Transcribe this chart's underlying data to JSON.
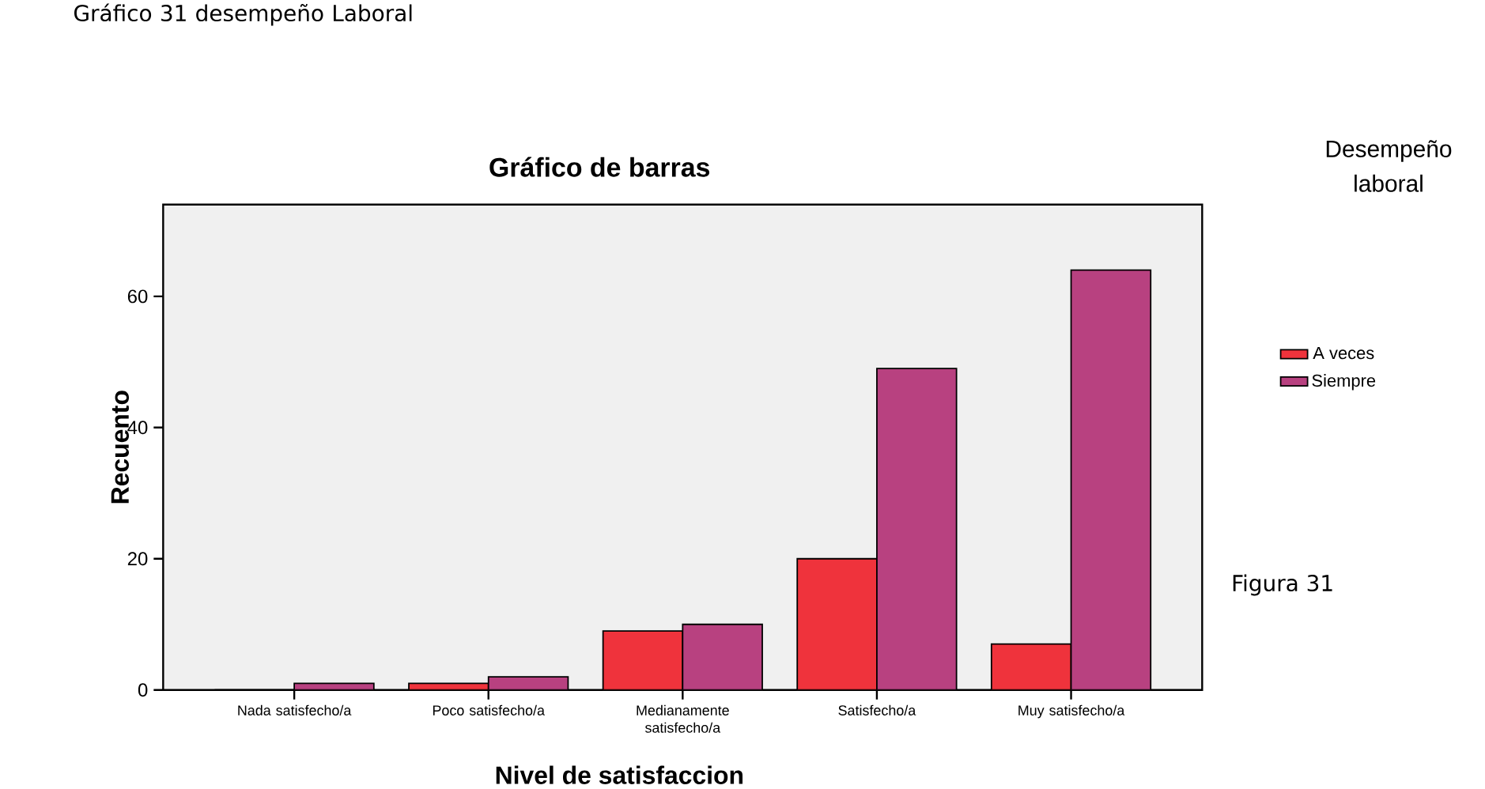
{
  "chart_data": {
    "type": "bar",
    "title": "Gráfico de barras",
    "xlabel": "Nivel de satisfaccion",
    "ylabel": "Recuento",
    "legend_title": "Desempeño laboral",
    "categories": [
      "Nada satisfecho/a",
      "Poco satisfecho/a",
      "Medianamente satisfecho/a",
      "Satisfecho/a",
      "Muy satisfecho/a"
    ],
    "series": [
      {
        "name": "A veces",
        "color": "#ef333c",
        "values": [
          0,
          1,
          9,
          20,
          7
        ]
      },
      {
        "name": "Siempre",
        "color": "#b84180",
        "values": [
          1,
          2,
          10,
          49,
          64
        ]
      }
    ],
    "ylim": [
      0,
      74
    ],
    "yticks": [
      0,
      20,
      40,
      60
    ],
    "grid": false,
    "legend": "right",
    "annotations": [
      "Gráfico  31 desempeño Laboral",
      "Figura 31"
    ]
  }
}
